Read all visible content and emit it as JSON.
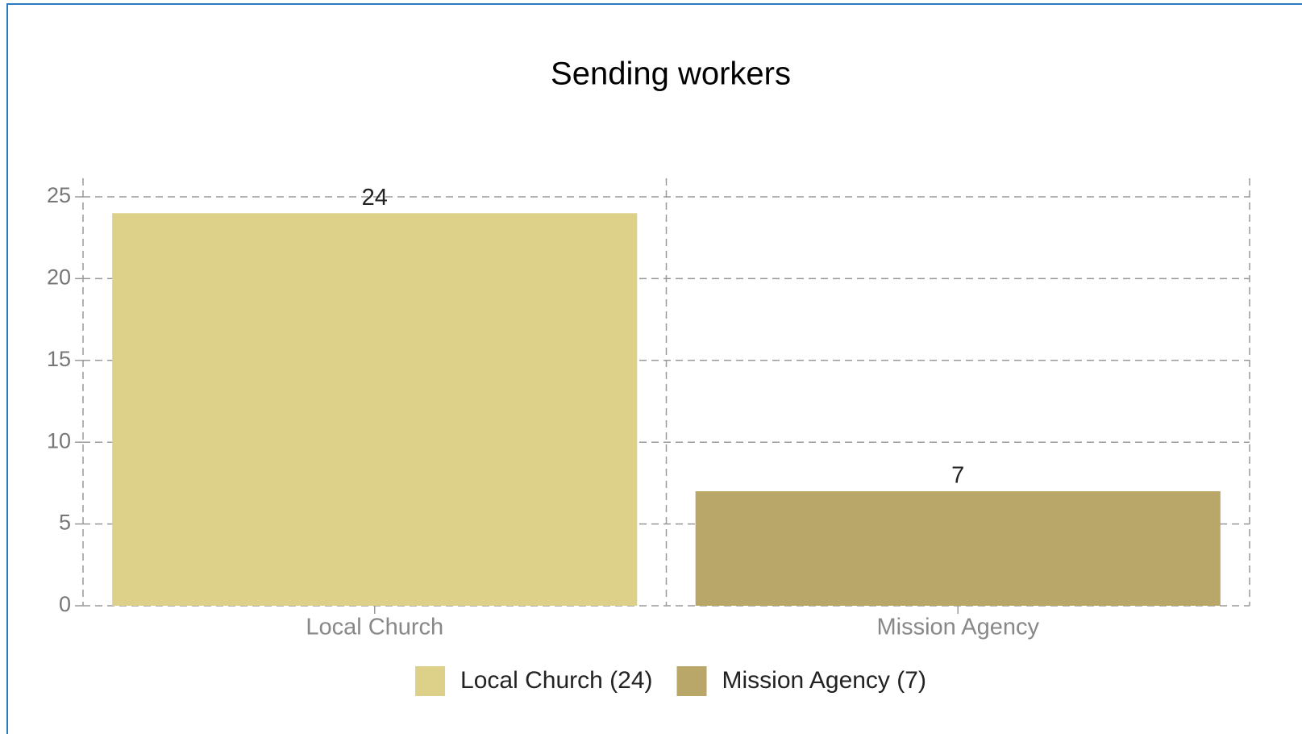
{
  "chart_data": {
    "type": "bar",
    "title": "Sending workers",
    "categories": [
      "Local Church",
      "Mission Agency"
    ],
    "values": [
      24,
      7
    ],
    "colors": [
      "#ddd18a",
      "#b9a769"
    ],
    "legend": [
      "Local Church (24)",
      "Mission Agency (7)"
    ],
    "ylim": [
      0,
      25
    ],
    "yticks": [
      0,
      5,
      10,
      15,
      20,
      25
    ],
    "grid": true
  }
}
